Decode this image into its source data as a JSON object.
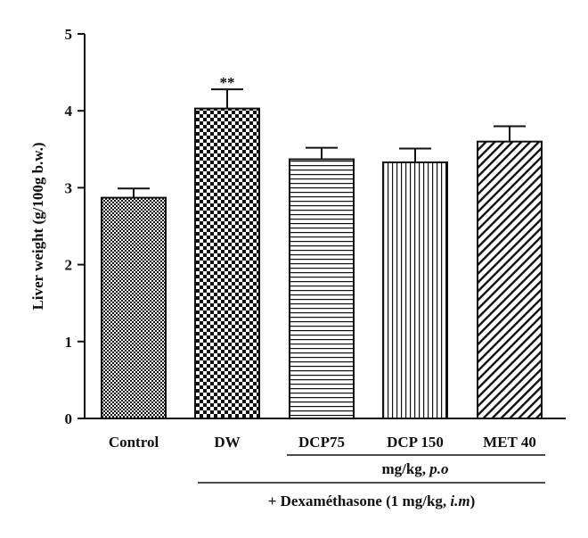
{
  "chart_data": {
    "type": "bar",
    "categories": [
      "Control",
      "DW",
      "DCP75",
      "DCP 150",
      "MET 40"
    ],
    "values": [
      2.87,
      4.03,
      3.37,
      3.33,
      3.6
    ],
    "errors": [
      0.12,
      0.25,
      0.15,
      0.18,
      0.2
    ],
    "significance": [
      "",
      "**",
      "",
      "",
      ""
    ],
    "patterns": [
      "fine-checker",
      "coarse-checker",
      "horizontal-lines",
      "vertical-lines",
      "diagonal-lines"
    ],
    "ylabel": "Liver weight (g/100g b.w.)",
    "ylim": [
      0,
      5
    ],
    "yticks": [
      "0",
      "1",
      "2",
      "3",
      "4",
      "5"
    ],
    "group_labels": {
      "dose": "mg/kg, ",
      "dose_route": "p.o",
      "treatment": "+ Dexaméthasone (1 mg/kg, ",
      "treatment_route": "i.m",
      "treatment_close": ")"
    },
    "colors": {
      "ink": "#111111",
      "background": "#ffffff"
    }
  }
}
